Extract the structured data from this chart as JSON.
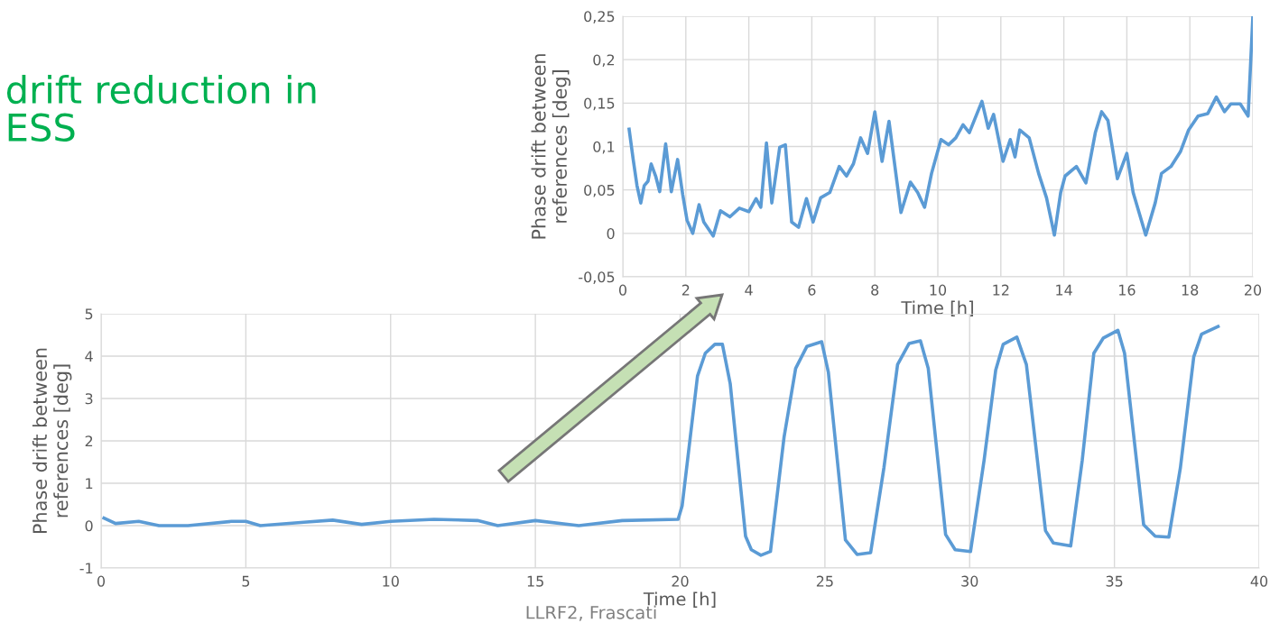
{
  "chart_data": [
    {
      "type": "line",
      "xlabel": "Time [h]",
      "ylabel": "Phase drift between\nreferences [deg]",
      "xlim": [
        0,
        20
      ],
      "xticks": [
        0,
        2,
        4,
        6,
        8,
        10,
        12,
        14,
        16,
        18,
        20
      ],
      "ylim": [
        -0.05,
        0.25
      ],
      "yticks": [
        {
          "value": -0.05,
          "label": "-0,05"
        },
        0,
        {
          "value": 0.05,
          "label": "0,05"
        },
        {
          "value": 0.1,
          "label": "0,1"
        },
        {
          "value": 0.15,
          "label": "0,15"
        },
        {
          "value": 0.2,
          "label": "0,2"
        },
        {
          "value": 0.25,
          "label": "0,25"
        }
      ],
      "grid": true,
      "series": [
        {
          "color": "#5b9bd5",
          "x": [
            0.2,
            0.33,
            0.45,
            0.57,
            0.68,
            0.8,
            0.9,
            1.05,
            1.17,
            1.36,
            1.54,
            1.74,
            1.9,
            2.04,
            2.22,
            2.42,
            2.57,
            2.87,
            3.1,
            3.4,
            3.7,
            4.0,
            4.23,
            4.38,
            4.56,
            4.73,
            4.98,
            5.16,
            5.36,
            5.58,
            5.83,
            6.04,
            6.28,
            6.57,
            6.87,
            7.1,
            7.32,
            7.55,
            7.77,
            8.0,
            8.23,
            8.45,
            8.83,
            9.13,
            9.36,
            9.58,
            9.8,
            10.1,
            10.34,
            10.57,
            10.8,
            11.0,
            11.4,
            11.6,
            11.77,
            12.07,
            12.3,
            12.45,
            12.6,
            12.9,
            13.2,
            13.45,
            13.7,
            13.9,
            14.04,
            14.4,
            14.7,
            15.0,
            15.2,
            15.4,
            15.7,
            16.0,
            16.2,
            16.6,
            16.9,
            17.1,
            17.4,
            17.7,
            17.96,
            18.26,
            18.57,
            18.84,
            19.1,
            19.3,
            19.6,
            19.85,
            20.0
          ],
          "values": [
            0.12,
            0.085,
            0.055,
            0.035,
            0.055,
            0.06,
            0.08,
            0.065,
            0.048,
            0.103,
            0.048,
            0.085,
            0.045,
            0.015,
            0.0,
            0.033,
            0.013,
            -0.003,
            0.026,
            0.019,
            0.029,
            0.025,
            0.04,
            0.03,
            0.104,
            0.035,
            0.099,
            0.102,
            0.013,
            0.007,
            0.04,
            0.013,
            0.041,
            0.047,
            0.077,
            0.066,
            0.08,
            0.11,
            0.092,
            0.14,
            0.083,
            0.129,
            0.024,
            0.059,
            0.047,
            0.03,
            0.069,
            0.108,
            0.102,
            0.11,
            0.125,
            0.116,
            0.152,
            0.121,
            0.137,
            0.083,
            0.108,
            0.088,
            0.119,
            0.11,
            0.069,
            0.041,
            -0.002,
            0.047,
            0.066,
            0.077,
            0.058,
            0.116,
            0.14,
            0.13,
            0.063,
            0.092,
            0.047,
            -0.002,
            0.035,
            0.069,
            0.077,
            0.094,
            0.119,
            0.135,
            0.138,
            0.157,
            0.14,
            0.149,
            0.149,
            0.135,
            0.25
          ]
        }
      ]
    },
    {
      "type": "line",
      "xlabel": "Time [h]",
      "ylabel": "Phase drift between\nreferences [deg]",
      "xlim": [
        0,
        40
      ],
      "xticks": [
        0,
        5,
        10,
        15,
        20,
        25,
        30,
        35,
        40
      ],
      "ylim": [
        -1,
        5
      ],
      "yticks": [
        -1,
        0,
        1,
        2,
        3,
        4,
        5
      ],
      "grid": true,
      "series": [
        {
          "color": "#5b9bd5",
          "x": [
            0.1,
            0.5,
            1.3,
            2.0,
            3.0,
            4.5,
            5.0,
            5.5,
            7.0,
            8.0,
            9.0,
            10.0,
            11.5,
            13.0,
            13.7,
            15.0,
            16.5,
            18.0,
            19.93,
            20.07,
            20.6,
            20.87,
            21.2,
            21.46,
            21.73,
            22.26,
            22.46,
            22.79,
            23.12,
            23.59,
            23.99,
            24.38,
            24.89,
            25.12,
            25.71,
            26.11,
            26.58,
            27.04,
            27.51,
            27.91,
            28.3,
            28.57,
            29.17,
            29.5,
            30.03,
            30.5,
            30.9,
            31.16,
            31.63,
            31.96,
            32.62,
            32.89,
            33.49,
            33.89,
            34.29,
            34.62,
            35.12,
            35.35,
            36.01,
            36.41,
            36.88,
            37.28,
            37.74,
            38.01,
            38.58
          ],
          "values": [
            0.18,
            0.05,
            0.1,
            0.0,
            0.0,
            0.1,
            0.1,
            0.0,
            0.08,
            0.13,
            0.03,
            0.1,
            0.15,
            0.12,
            0.0,
            0.12,
            0.0,
            0.12,
            0.15,
            0.47,
            3.53,
            4.07,
            4.28,
            4.28,
            3.35,
            -0.25,
            -0.57,
            -0.7,
            -0.61,
            2.09,
            3.71,
            4.23,
            4.34,
            3.62,
            -0.34,
            -0.68,
            -0.64,
            1.37,
            3.8,
            4.3,
            4.36,
            3.71,
            -0.21,
            -0.57,
            -0.61,
            1.55,
            3.67,
            4.28,
            4.45,
            3.8,
            -0.12,
            -0.41,
            -0.48,
            1.55,
            4.07,
            4.43,
            4.61,
            4.07,
            0.02,
            -0.25,
            -0.27,
            1.37,
            3.98,
            4.52,
            4.7
          ]
        }
      ]
    },
    {
      "type": "other",
      "title": "drift reduction in\nESS",
      "annotations": [
        "LLRF2, Frascati"
      ]
    }
  ]
}
